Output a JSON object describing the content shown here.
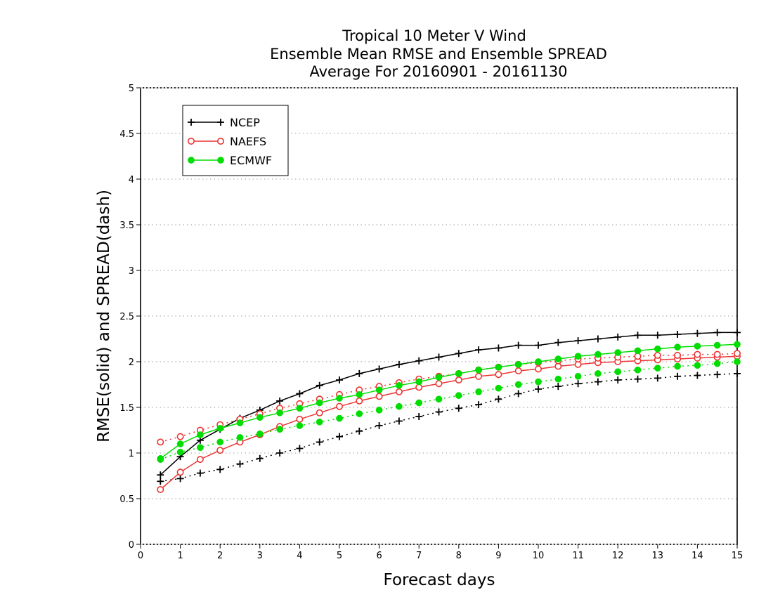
{
  "chart_data": {
    "type": "line",
    "title_lines": [
      "Tropical 10 Meter V Wind",
      "Ensemble Mean RMSE and Ensemble SPREAD",
      "Average For 20160901 - 20161130"
    ],
    "xlabel": "Forecast days",
    "ylabel": "RMSE(solid) and SPREAD(dash)",
    "xlim": [
      0,
      15
    ],
    "ylim": [
      0,
      5
    ],
    "xticks": [
      "0",
      "1",
      "2",
      "3",
      "4",
      "5",
      "6",
      "7",
      "8",
      "9",
      "10",
      "11",
      "12",
      "13",
      "14",
      "15"
    ],
    "yticks": [
      "0",
      "0.5",
      "1",
      "1.5",
      "2",
      "2.5",
      "3",
      "3.5",
      "4",
      "4.5",
      "5"
    ],
    "grid": "dotted horizontal",
    "legend_position": "top-left",
    "x": [
      0.5,
      1,
      1.5,
      2,
      2.5,
      3,
      3.5,
      4,
      4.5,
      5,
      5.5,
      6,
      6.5,
      7,
      7.5,
      8,
      8.5,
      9,
      9.5,
      10,
      10.5,
      11,
      11.5,
      12,
      12.5,
      13,
      13.5,
      14,
      14.5,
      15
    ],
    "series": [
      {
        "name": "NCEP",
        "color": "#000000",
        "marker": "plus",
        "rmse": [
          0.76,
          0.96,
          1.14,
          1.26,
          1.38,
          1.47,
          1.57,
          1.65,
          1.74,
          1.8,
          1.87,
          1.92,
          1.97,
          2.01,
          2.05,
          2.09,
          2.13,
          2.15,
          2.18,
          2.18,
          2.21,
          2.23,
          2.25,
          2.27,
          2.29,
          2.29,
          2.3,
          2.31,
          2.32,
          2.32
        ],
        "spread": [
          0.69,
          0.72,
          0.78,
          0.82,
          0.88,
          0.94,
          1.0,
          1.05,
          1.12,
          1.18,
          1.24,
          1.3,
          1.35,
          1.4,
          1.45,
          1.49,
          1.53,
          1.59,
          1.65,
          1.7,
          1.73,
          1.76,
          1.78,
          1.8,
          1.81,
          1.82,
          1.84,
          1.85,
          1.86,
          1.87
        ]
      },
      {
        "name": "NAEFS",
        "color": "#ee3333",
        "marker": "open-circle",
        "rmse": [
          0.6,
          0.79,
          0.93,
          1.03,
          1.12,
          1.2,
          1.29,
          1.37,
          1.44,
          1.51,
          1.57,
          1.62,
          1.67,
          1.72,
          1.76,
          1.8,
          1.84,
          1.86,
          1.9,
          1.92,
          1.95,
          1.97,
          1.99,
          2.0,
          2.01,
          2.02,
          2.03,
          2.04,
          2.05,
          2.06
        ],
        "spread": [
          1.12,
          1.18,
          1.25,
          1.31,
          1.37,
          1.43,
          1.49,
          1.54,
          1.59,
          1.64,
          1.69,
          1.73,
          1.77,
          1.81,
          1.84,
          1.87,
          1.91,
          1.94,
          1.97,
          1.99,
          2.01,
          2.03,
          2.04,
          2.05,
          2.06,
          2.07,
          2.07,
          2.08,
          2.08,
          2.09
        ]
      },
      {
        "name": "ECMWF",
        "color": "#00dd00",
        "marker": "filled-circle",
        "rmse": [
          0.94,
          1.1,
          1.2,
          1.27,
          1.33,
          1.39,
          1.44,
          1.49,
          1.55,
          1.6,
          1.64,
          1.69,
          1.74,
          1.78,
          1.83,
          1.87,
          1.91,
          1.94,
          1.97,
          2.0,
          2.03,
          2.06,
          2.08,
          2.1,
          2.12,
          2.14,
          2.16,
          2.17,
          2.18,
          2.19
        ],
        "spread": [
          0.93,
          1.01,
          1.06,
          1.12,
          1.17,
          1.21,
          1.26,
          1.3,
          1.34,
          1.38,
          1.43,
          1.47,
          1.51,
          1.55,
          1.59,
          1.63,
          1.67,
          1.71,
          1.75,
          1.78,
          1.81,
          1.84,
          1.87,
          1.89,
          1.91,
          1.93,
          1.95,
          1.96,
          1.98,
          2.0
        ]
      }
    ]
  }
}
